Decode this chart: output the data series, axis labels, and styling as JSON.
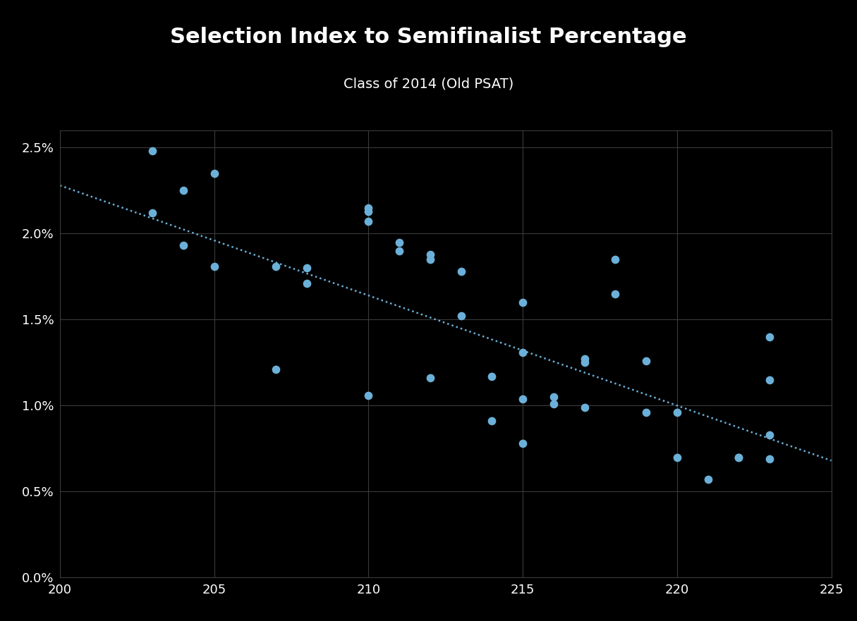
{
  "title": "Selection Index to Semifinalist Percentage",
  "subtitle": "Class of 2014 (Old PSAT)",
  "background_color": "#000000",
  "text_color": "#ffffff",
  "dot_color": "#6bb0d8",
  "trendline_color": "#6bb0d8",
  "xlim": [
    200,
    225
  ],
  "ylim": [
    0.0,
    0.026
  ],
  "xticks": [
    200,
    205,
    210,
    215,
    220,
    225
  ],
  "yticks": [
    0.0,
    0.005,
    0.01,
    0.015,
    0.02,
    0.025
  ],
  "ytick_labels": [
    "0.0%",
    "0.5%",
    "1.0%",
    "1.5%",
    "2.0%",
    "2.5%"
  ],
  "scatter_x": [
    203,
    203,
    204,
    204,
    205,
    205,
    207,
    207,
    208,
    208,
    210,
    210,
    210,
    210,
    211,
    211,
    212,
    212,
    212,
    213,
    213,
    214,
    214,
    215,
    215,
    215,
    215,
    216,
    216,
    217,
    217,
    217,
    218,
    218,
    219,
    219,
    220,
    220,
    221,
    222,
    222,
    223,
    223,
    223,
    223
  ],
  "scatter_y": [
    0.0248,
    0.0212,
    0.0193,
    0.0225,
    0.0181,
    0.0235,
    0.0181,
    0.0121,
    0.018,
    0.0171,
    0.0215,
    0.0213,
    0.0207,
    0.0106,
    0.0195,
    0.019,
    0.0188,
    0.0185,
    0.0116,
    0.0178,
    0.0152,
    0.0117,
    0.0091,
    0.016,
    0.0131,
    0.0104,
    0.0078,
    0.0105,
    0.0101,
    0.0127,
    0.0125,
    0.0099,
    0.0185,
    0.0165,
    0.0126,
    0.0096,
    0.0096,
    0.007,
    0.0057,
    0.007,
    0.007,
    0.014,
    0.0115,
    0.0083,
    0.0069
  ],
  "trendline_x0": 200,
  "trendline_x1": 225,
  "trendline_y0": 0.0228,
  "trendline_y1": 0.0068
}
